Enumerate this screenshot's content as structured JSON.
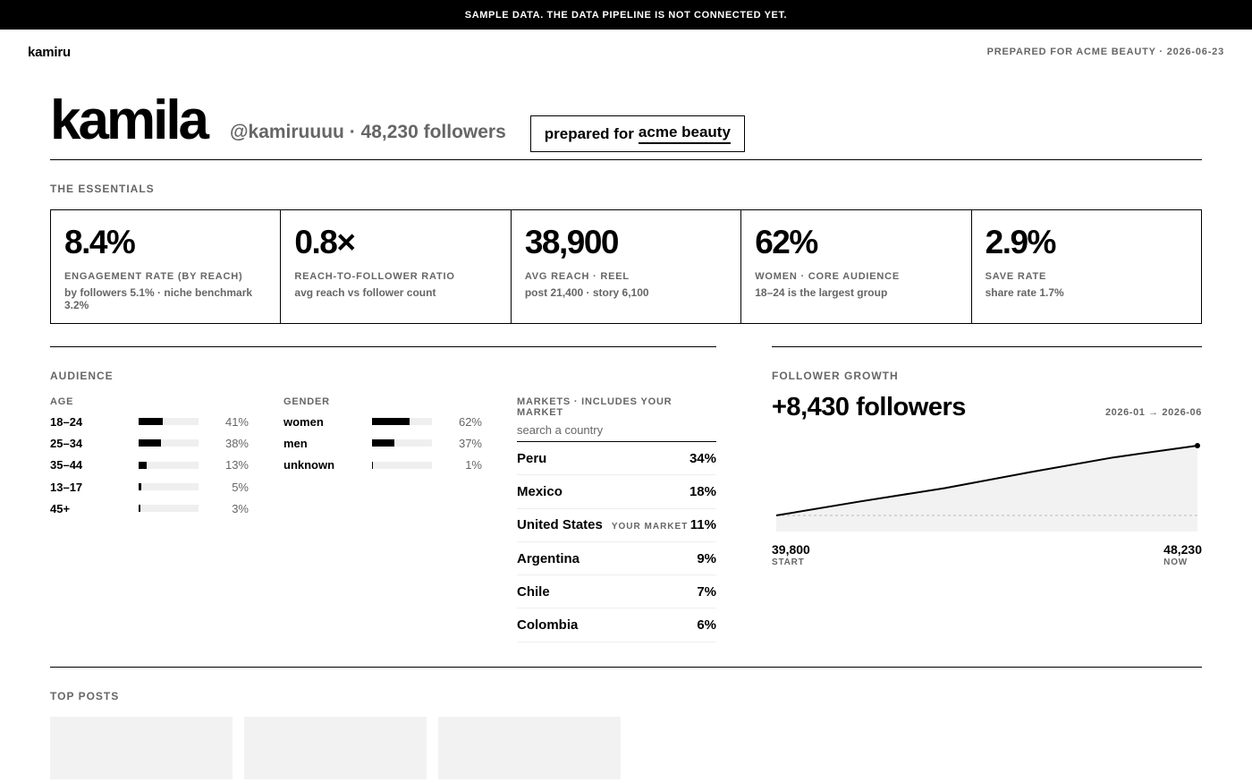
{
  "banner": {
    "text": "SAMPLE DATA. THE DATA PIPELINE IS NOT CONNECTED YET."
  },
  "topbar": {
    "brand": "kamiru",
    "prepared_meta": "PREPARED FOR ACME BEAUTY · 2026-06-23"
  },
  "hero": {
    "name": "kamila",
    "handle": "@kamiruuuu · 48,230 followers",
    "prepared_prefix": "prepared for",
    "prepared_brand": "acme beauty"
  },
  "essentials": {
    "label": "THE ESSENTIALS",
    "stats": [
      {
        "value": "8.4%",
        "label": "ENGAGEMENT RATE (BY REACH)",
        "sub": "by followers 5.1% · niche benchmark 3.2%"
      },
      {
        "value": "0.8×",
        "label": "REACH-TO-FOLLOWER RATIO",
        "sub": "avg reach vs follower count"
      },
      {
        "value": "38,900",
        "label": "AVG REACH · REEL",
        "sub": "post 21,400 · story 6,100"
      },
      {
        "value": "62%",
        "label": "WOMEN · CORE AUDIENCE",
        "sub": "18–24 is the largest group"
      },
      {
        "value": "2.9%",
        "label": "SAVE RATE",
        "sub": "share rate 1.7%"
      }
    ]
  },
  "audience": {
    "label": "AUDIENCE",
    "age": {
      "head": "AGE",
      "rows": [
        {
          "label": "18–24",
          "pct": "41%",
          "value": 41
        },
        {
          "label": "25–34",
          "pct": "38%",
          "value": 38
        },
        {
          "label": "35–44",
          "pct": "13%",
          "value": 13
        },
        {
          "label": "13–17",
          "pct": "5%",
          "value": 5
        },
        {
          "label": "45+",
          "pct": "3%",
          "value": 3
        }
      ]
    },
    "gender": {
      "head": "GENDER",
      "rows": [
        {
          "label": "women",
          "pct": "62%",
          "value": 62
        },
        {
          "label": "men",
          "pct": "37%",
          "value": 37
        },
        {
          "label": "unknown",
          "pct": "1%",
          "value": 1
        }
      ]
    },
    "markets": {
      "head": "MARKETS · INCLUDES YOUR MARKET",
      "search_placeholder": "search a country",
      "rows": [
        {
          "name": "Peru",
          "pct": "34%",
          "tag": ""
        },
        {
          "name": "Mexico",
          "pct": "18%",
          "tag": ""
        },
        {
          "name": "United States",
          "pct": "11%",
          "tag": "YOUR MARKET"
        },
        {
          "name": "Argentina",
          "pct": "9%",
          "tag": ""
        },
        {
          "name": "Chile",
          "pct": "7%",
          "tag": ""
        },
        {
          "name": "Colombia",
          "pct": "6%",
          "tag": ""
        }
      ]
    }
  },
  "growth": {
    "label": "FOLLOWER GROWTH",
    "value": "+8,430 followers",
    "range": "2026-01 → 2026-06",
    "start_value": "39,800",
    "start_label": "START",
    "end_value": "48,230",
    "end_label": "NOW",
    "chart_data": {
      "type": "area",
      "x": [
        "2026-01",
        "2026-02",
        "2026-03",
        "2026-04",
        "2026-05",
        "2026-06"
      ],
      "values": [
        39800,
        41500,
        43100,
        45000,
        46800,
        48230
      ],
      "baseline": 39800
    }
  },
  "top_posts": {
    "label": "TOP POSTS",
    "count": 3
  }
}
